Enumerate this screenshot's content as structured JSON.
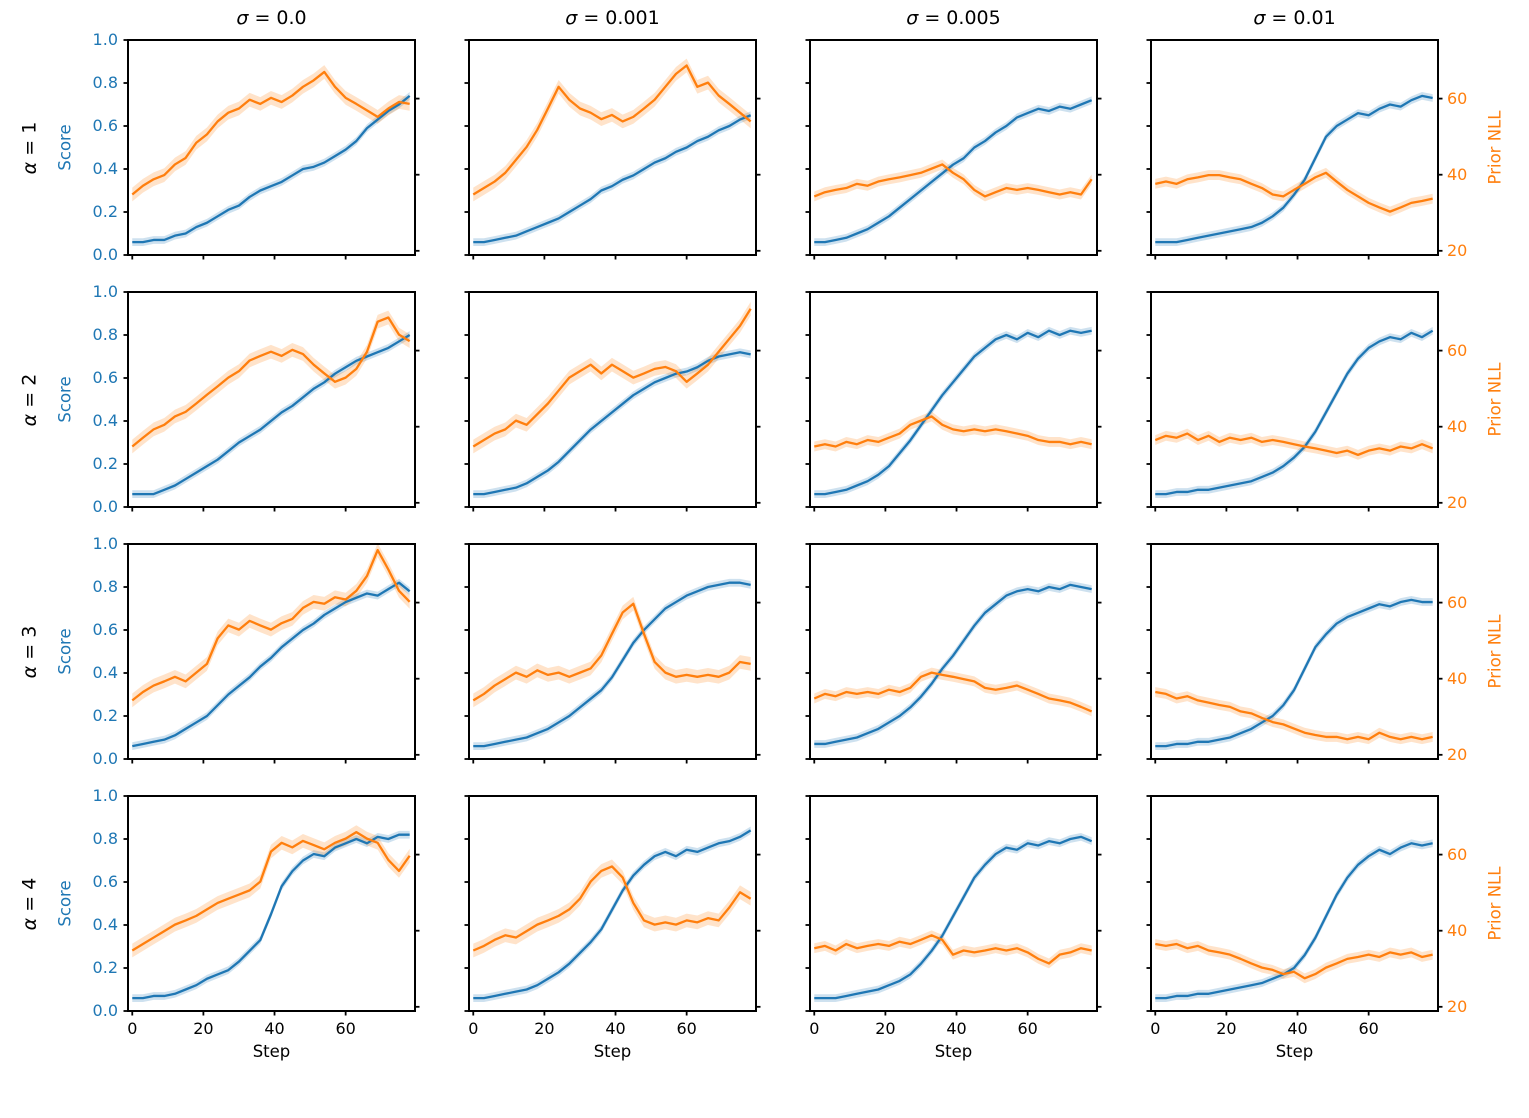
{
  "figure": {
    "col_titles": [
      "σ = 0.0",
      "σ = 0.001",
      "σ = 0.005",
      "σ = 0.01"
    ],
    "row_labels": [
      "α = 1",
      "α = 2",
      "α = 3",
      "α = 4"
    ],
    "xlabel": "Step",
    "ylabel_left": "Score",
    "ylabel_right": "Prior NLL",
    "colors": {
      "score_line": "#1f77b4",
      "nll_line": "#ff7f0e",
      "score_band": "rgba(31,119,180,0.22)",
      "nll_band": "rgba(255,127,14,0.22)",
      "spine": "#000000"
    }
  },
  "chart_data": {
    "type": "line",
    "grid": {
      "rows": 4,
      "cols": 4
    },
    "x": {
      "start": 0,
      "step": 3,
      "lim": [
        -1.2,
        79.5
      ],
      "ticks": [
        0,
        20,
        40,
        60
      ],
      "label": "Step"
    },
    "y_left": {
      "label": "Score",
      "lim": [
        0,
        1
      ],
      "ticks": [
        0.0,
        0.2,
        0.4,
        0.6,
        0.8,
        1.0
      ],
      "color": "#1f77b4"
    },
    "y_right": {
      "label": "Prior NLL",
      "lim": [
        18.9,
        75.4
      ],
      "ticks": [
        20,
        40,
        60
      ],
      "color": "#ff7f0e"
    },
    "legend": "none",
    "panels": [
      {
        "row_label": "α = 1",
        "col_title": "σ = 0.0",
        "score_band": 0.018,
        "nll_band": 1.8,
        "score": [
          0.06,
          0.06,
          0.07,
          0.07,
          0.09,
          0.1,
          0.13,
          0.15,
          0.18,
          0.21,
          0.23,
          0.27,
          0.3,
          0.32,
          0.34,
          0.37,
          0.4,
          0.41,
          0.43,
          0.46,
          0.49,
          0.53,
          0.59,
          0.63,
          0.67,
          0.7,
          0.74
        ],
        "prior_nll": [
          34.8,
          37.1,
          38.8,
          39.9,
          42.7,
          44.4,
          48.4,
          50.6,
          54.0,
          56.3,
          57.4,
          59.7,
          58.6,
          60.2,
          59.1,
          60.8,
          63.1,
          64.8,
          67.0,
          63.1,
          60.2,
          58.6,
          56.9,
          55.2,
          57.4,
          59.1,
          58.6
        ]
      },
      {
        "row_label": "α = 1",
        "col_title": "σ = 0.001",
        "score_band": 0.018,
        "nll_band": 1.8,
        "score": [
          0.06,
          0.06,
          0.07,
          0.08,
          0.09,
          0.11,
          0.13,
          0.15,
          0.17,
          0.2,
          0.23,
          0.26,
          0.3,
          0.32,
          0.35,
          0.37,
          0.4,
          0.43,
          0.45,
          0.48,
          0.5,
          0.53,
          0.55,
          0.58,
          0.6,
          0.63,
          0.65
        ],
        "prior_nll": [
          34.8,
          36.5,
          38.2,
          40.5,
          43.9,
          47.3,
          51.8,
          57.4,
          63.1,
          59.7,
          57.4,
          56.3,
          54.6,
          55.7,
          54.0,
          55.2,
          57.4,
          59.7,
          63.1,
          66.5,
          68.7,
          63.1,
          64.2,
          60.8,
          58.6,
          56.3,
          54.0
        ]
      },
      {
        "row_label": "α = 1",
        "col_title": "σ = 0.005",
        "score_band": 0.018,
        "nll_band": 1.3,
        "score": [
          0.06,
          0.06,
          0.07,
          0.08,
          0.1,
          0.12,
          0.15,
          0.18,
          0.22,
          0.26,
          0.3,
          0.34,
          0.38,
          0.42,
          0.45,
          0.5,
          0.53,
          0.57,
          0.6,
          0.64,
          0.66,
          0.68,
          0.67,
          0.69,
          0.68,
          0.7,
          0.72
        ],
        "prior_nll": [
          34.3,
          35.4,
          36.0,
          36.5,
          37.6,
          37.1,
          38.2,
          38.8,
          39.3,
          39.9,
          40.5,
          41.6,
          42.7,
          40.5,
          38.8,
          36.0,
          34.3,
          35.4,
          36.5,
          36.0,
          36.5,
          36.0,
          35.4,
          34.8,
          35.4,
          34.8,
          38.8
        ]
      },
      {
        "row_label": "α = 1",
        "col_title": "σ = 0.01",
        "score_band": 0.018,
        "nll_band": 1.3,
        "score": [
          0.06,
          0.06,
          0.06,
          0.07,
          0.08,
          0.09,
          0.1,
          0.11,
          0.12,
          0.13,
          0.15,
          0.18,
          0.22,
          0.28,
          0.35,
          0.45,
          0.55,
          0.6,
          0.63,
          0.66,
          0.65,
          0.68,
          0.7,
          0.69,
          0.72,
          0.74,
          0.73
        ],
        "prior_nll": [
          37.6,
          38.2,
          37.6,
          38.8,
          39.3,
          39.9,
          39.9,
          39.3,
          38.8,
          37.6,
          36.5,
          34.8,
          34.3,
          36.0,
          37.6,
          39.3,
          40.5,
          38.2,
          36.0,
          34.3,
          32.6,
          31.4,
          30.3,
          31.4,
          32.6,
          33.1,
          33.7
        ]
      },
      {
        "row_label": "α = 2",
        "col_title": "σ = 0.0",
        "score_band": 0.018,
        "nll_band": 1.8,
        "score": [
          0.06,
          0.06,
          0.06,
          0.08,
          0.1,
          0.13,
          0.16,
          0.19,
          0.22,
          0.26,
          0.3,
          0.33,
          0.36,
          0.4,
          0.44,
          0.47,
          0.51,
          0.55,
          0.58,
          0.62,
          0.65,
          0.68,
          0.7,
          0.72,
          0.74,
          0.77,
          0.8
        ],
        "prior_nll": [
          34.8,
          37.1,
          39.3,
          40.5,
          42.7,
          43.9,
          46.1,
          48.4,
          50.6,
          52.9,
          54.6,
          57.4,
          58.6,
          59.7,
          58.6,
          60.2,
          59.1,
          56.3,
          54.0,
          51.8,
          52.9,
          55.2,
          59.7,
          67.6,
          68.7,
          64.2,
          62.5
        ]
      },
      {
        "row_label": "α = 2",
        "col_title": "σ = 0.001",
        "score_band": 0.018,
        "nll_band": 1.8,
        "score": [
          0.06,
          0.06,
          0.07,
          0.08,
          0.09,
          0.11,
          0.14,
          0.17,
          0.21,
          0.26,
          0.31,
          0.36,
          0.4,
          0.44,
          0.48,
          0.52,
          0.55,
          0.58,
          0.6,
          0.62,
          0.63,
          0.65,
          0.68,
          0.7,
          0.71,
          0.72,
          0.71
        ],
        "prior_nll": [
          34.8,
          36.5,
          38.2,
          39.3,
          41.6,
          40.5,
          43.3,
          46.1,
          49.5,
          52.9,
          54.6,
          56.3,
          54.0,
          56.3,
          54.6,
          52.9,
          54.0,
          55.2,
          55.7,
          54.6,
          51.8,
          54.0,
          56.3,
          59.7,
          63.1,
          66.5,
          71.0
        ]
      },
      {
        "row_label": "α = 2",
        "col_title": "σ = 0.005",
        "score_band": 0.018,
        "nll_band": 1.3,
        "score": [
          0.06,
          0.06,
          0.07,
          0.08,
          0.1,
          0.12,
          0.15,
          0.19,
          0.25,
          0.31,
          0.38,
          0.45,
          0.52,
          0.58,
          0.64,
          0.7,
          0.74,
          0.78,
          0.8,
          0.78,
          0.81,
          0.79,
          0.82,
          0.8,
          0.82,
          0.81,
          0.82
        ],
        "prior_nll": [
          34.8,
          35.4,
          34.8,
          36.0,
          35.4,
          36.5,
          36.0,
          37.1,
          38.2,
          40.5,
          41.6,
          42.7,
          40.5,
          39.3,
          38.8,
          39.3,
          38.8,
          39.3,
          38.8,
          38.2,
          37.6,
          36.5,
          36.0,
          36.0,
          35.4,
          36.0,
          35.4
        ]
      },
      {
        "row_label": "α = 2",
        "col_title": "σ = 0.01",
        "score_band": 0.018,
        "nll_band": 1.3,
        "score": [
          0.06,
          0.06,
          0.07,
          0.07,
          0.08,
          0.08,
          0.09,
          0.1,
          0.11,
          0.12,
          0.14,
          0.16,
          0.19,
          0.23,
          0.28,
          0.35,
          0.44,
          0.53,
          0.62,
          0.69,
          0.74,
          0.77,
          0.79,
          0.78,
          0.81,
          0.79,
          0.82
        ],
        "prior_nll": [
          36.5,
          37.6,
          37.1,
          38.2,
          36.5,
          37.6,
          36.0,
          37.1,
          36.5,
          37.1,
          36.0,
          36.5,
          36.0,
          35.4,
          34.8,
          34.3,
          33.7,
          33.1,
          33.7,
          32.6,
          33.7,
          34.3,
          33.7,
          34.8,
          34.3,
          35.4,
          34.3
        ]
      },
      {
        "row_label": "α = 3",
        "col_title": "σ = 0.0",
        "score_band": 0.018,
        "nll_band": 1.8,
        "score": [
          0.06,
          0.07,
          0.08,
          0.09,
          0.11,
          0.14,
          0.17,
          0.2,
          0.25,
          0.3,
          0.34,
          0.38,
          0.43,
          0.47,
          0.52,
          0.56,
          0.6,
          0.63,
          0.67,
          0.7,
          0.73,
          0.75,
          0.77,
          0.76,
          0.79,
          0.82,
          0.78
        ],
        "prior_nll": [
          34.3,
          36.5,
          38.2,
          39.3,
          40.5,
          39.3,
          41.6,
          43.9,
          50.6,
          54.0,
          52.9,
          55.2,
          54.0,
          52.9,
          54.6,
          55.7,
          58.6,
          60.2,
          59.7,
          61.4,
          60.8,
          63.1,
          67.0,
          73.8,
          68.7,
          63.1,
          60.2
        ]
      },
      {
        "row_label": "α = 3",
        "col_title": "σ = 0.001",
        "score_band": 0.018,
        "nll_band": 1.8,
        "score": [
          0.06,
          0.06,
          0.07,
          0.08,
          0.09,
          0.1,
          0.12,
          0.14,
          0.17,
          0.2,
          0.24,
          0.28,
          0.32,
          0.38,
          0.46,
          0.54,
          0.6,
          0.65,
          0.7,
          0.73,
          0.76,
          0.78,
          0.8,
          0.81,
          0.82,
          0.82,
          0.81
        ],
        "prior_nll": [
          34.3,
          36.0,
          38.2,
          39.9,
          41.6,
          40.5,
          42.2,
          41.0,
          41.6,
          40.5,
          41.6,
          42.7,
          46.1,
          51.8,
          57.4,
          59.7,
          51.8,
          44.4,
          41.6,
          40.5,
          41.0,
          40.5,
          41.0,
          40.5,
          41.6,
          44.4,
          43.9
        ]
      },
      {
        "row_label": "α = 3",
        "col_title": "σ = 0.005",
        "score_band": 0.018,
        "nll_band": 1.3,
        "score": [
          0.07,
          0.07,
          0.08,
          0.09,
          0.1,
          0.12,
          0.14,
          0.17,
          0.2,
          0.24,
          0.29,
          0.35,
          0.42,
          0.48,
          0.55,
          0.62,
          0.68,
          0.72,
          0.76,
          0.78,
          0.79,
          0.78,
          0.8,
          0.79,
          0.81,
          0.8,
          0.79
        ],
        "prior_nll": [
          34.8,
          36.0,
          35.4,
          36.5,
          36.0,
          36.5,
          36.0,
          37.1,
          36.5,
          37.6,
          40.5,
          41.6,
          41.0,
          40.5,
          39.9,
          39.3,
          37.6,
          37.1,
          37.6,
          38.2,
          37.1,
          36.0,
          34.8,
          34.3,
          33.7,
          32.6,
          31.4
        ]
      },
      {
        "row_label": "α = 3",
        "col_title": "σ = 0.01",
        "score_band": 0.018,
        "nll_band": 1.3,
        "score": [
          0.06,
          0.06,
          0.07,
          0.07,
          0.08,
          0.08,
          0.09,
          0.1,
          0.12,
          0.14,
          0.17,
          0.2,
          0.25,
          0.32,
          0.42,
          0.52,
          0.58,
          0.63,
          0.66,
          0.68,
          0.7,
          0.72,
          0.71,
          0.73,
          0.74,
          0.73,
          0.73
        ],
        "prior_nll": [
          36.5,
          36.0,
          34.8,
          35.4,
          34.3,
          33.7,
          33.1,
          32.6,
          31.4,
          30.9,
          29.7,
          28.6,
          28.0,
          26.9,
          25.8,
          25.2,
          24.7,
          24.7,
          24.1,
          24.7,
          24.1,
          25.8,
          24.7,
          24.1,
          24.7,
          24.1,
          24.7
        ]
      },
      {
        "row_label": "α = 4",
        "col_title": "σ = 0.0",
        "score_band": 0.018,
        "nll_band": 1.8,
        "score": [
          0.06,
          0.06,
          0.07,
          0.07,
          0.08,
          0.1,
          0.12,
          0.15,
          0.17,
          0.19,
          0.23,
          0.28,
          0.33,
          0.45,
          0.58,
          0.65,
          0.7,
          0.73,
          0.72,
          0.76,
          0.78,
          0.8,
          0.78,
          0.81,
          0.8,
          0.82,
          0.82
        ],
        "prior_nll": [
          34.8,
          36.5,
          38.2,
          39.9,
          41.6,
          42.7,
          43.9,
          45.6,
          47.3,
          48.4,
          49.5,
          50.6,
          52.9,
          60.8,
          63.1,
          61.9,
          63.6,
          62.5,
          61.4,
          63.1,
          64.2,
          65.9,
          64.2,
          63.1,
          58.6,
          55.7,
          59.7
        ]
      },
      {
        "row_label": "α = 4",
        "col_title": "σ = 0.001",
        "score_band": 0.018,
        "nll_band": 1.8,
        "score": [
          0.06,
          0.06,
          0.07,
          0.08,
          0.09,
          0.1,
          0.12,
          0.15,
          0.18,
          0.22,
          0.27,
          0.32,
          0.38,
          0.47,
          0.56,
          0.63,
          0.68,
          0.72,
          0.74,
          0.72,
          0.75,
          0.74,
          0.76,
          0.78,
          0.79,
          0.81,
          0.84
        ],
        "prior_nll": [
          34.8,
          36.0,
          37.6,
          38.8,
          38.2,
          39.9,
          41.6,
          42.7,
          43.9,
          45.6,
          48.4,
          52.9,
          55.7,
          56.9,
          54.0,
          47.3,
          42.7,
          41.6,
          42.2,
          41.6,
          42.7,
          42.2,
          43.3,
          42.7,
          46.1,
          50.1,
          48.4
        ]
      },
      {
        "row_label": "α = 4",
        "col_title": "σ = 0.005",
        "score_band": 0.018,
        "nll_band": 1.3,
        "score": [
          0.06,
          0.06,
          0.06,
          0.07,
          0.08,
          0.09,
          0.1,
          0.12,
          0.14,
          0.17,
          0.22,
          0.28,
          0.35,
          0.44,
          0.53,
          0.62,
          0.68,
          0.73,
          0.76,
          0.75,
          0.78,
          0.77,
          0.79,
          0.78,
          0.8,
          0.81,
          0.79
        ],
        "prior_nll": [
          35.4,
          36.0,
          34.8,
          36.5,
          35.4,
          36.0,
          36.5,
          36.0,
          37.1,
          36.5,
          37.6,
          38.8,
          37.6,
          33.7,
          34.8,
          34.3,
          34.8,
          35.4,
          34.8,
          35.4,
          34.3,
          32.6,
          31.4,
          33.7,
          34.3,
          35.4,
          34.8
        ]
      },
      {
        "row_label": "α = 4",
        "col_title": "σ = 0.01",
        "score_band": 0.018,
        "nll_band": 1.3,
        "score": [
          0.06,
          0.06,
          0.07,
          0.07,
          0.08,
          0.08,
          0.09,
          0.1,
          0.11,
          0.12,
          0.13,
          0.15,
          0.17,
          0.2,
          0.26,
          0.34,
          0.44,
          0.54,
          0.62,
          0.68,
          0.72,
          0.75,
          0.73,
          0.76,
          0.78,
          0.77,
          0.78
        ],
        "prior_nll": [
          36.5,
          36.0,
          36.5,
          35.4,
          36.0,
          34.8,
          34.3,
          33.7,
          32.6,
          31.4,
          30.3,
          29.7,
          28.6,
          29.2,
          27.5,
          28.6,
          30.3,
          31.4,
          32.6,
          33.1,
          33.7,
          33.1,
          34.3,
          33.7,
          34.3,
          33.1,
          33.7
        ]
      }
    ]
  }
}
